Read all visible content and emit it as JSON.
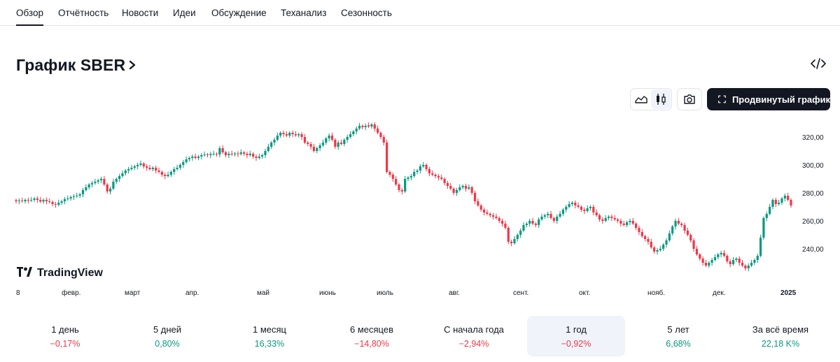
{
  "tabs": [
    {
      "label": "Обзор",
      "active": true
    },
    {
      "label": "Отчётность"
    },
    {
      "label": "Новости"
    },
    {
      "label": "Идеи"
    },
    {
      "label": "Обсуждение"
    },
    {
      "label": "Теханализ"
    },
    {
      "label": "Сезонность"
    }
  ],
  "header": {
    "title": "График SBER",
    "title_icon": "chevron-right-icon",
    "embed_icon": "code-icon"
  },
  "toolbar": {
    "line_icon": "line-chart-icon",
    "candles_icon": "candlestick-icon",
    "candles_active": true,
    "camera_icon": "camera-icon",
    "advanced_icon": "fullscreen-icon",
    "advanced_label": "Продвинутый график"
  },
  "colors": {
    "up": "#089981",
    "down": "#f23645",
    "text": "#131722",
    "axis_text": "#131722",
    "tab_underline": "#131722",
    "selected_bg": "#f0f3fa"
  },
  "chart_data": {
    "type": "candlestick",
    "symbol": "SBER",
    "watermark": "TradingView",
    "yticks": [
      "320,00",
      "300,00",
      "280,00",
      "260,00",
      "240,00"
    ],
    "ytick_values": [
      320,
      300,
      280,
      260,
      240
    ],
    "ylim": [
      218,
      338
    ],
    "x_labels": [
      "8",
      "февр.",
      "март",
      "апр.",
      "май",
      "июнь",
      "июль",
      "авг.",
      "сент.",
      "окт.",
      "нояб.",
      "дек.",
      "2025"
    ],
    "x_bold": "2025",
    "closes": [
      274,
      274.5,
      274,
      275,
      274.5,
      275,
      276,
      275,
      273.8,
      275,
      274,
      273.5,
      272,
      271.5,
      273,
      274,
      275.5,
      276,
      277,
      277.5,
      278,
      279,
      282,
      284,
      286,
      287,
      288,
      289,
      290,
      286,
      281,
      283,
      288,
      290,
      292,
      294,
      296,
      297,
      298,
      299,
      300,
      301,
      299,
      298,
      297,
      298,
      296,
      295,
      293,
      292,
      293,
      295,
      297,
      298,
      300,
      302,
      304,
      305,
      306,
      305,
      306,
      307,
      307.5,
      307,
      307.8,
      308,
      307.5,
      312,
      309,
      307,
      308,
      307.6,
      308.2,
      307.8,
      309,
      308,
      307,
      308,
      306,
      305,
      306,
      307,
      310,
      313,
      316,
      318,
      321,
      323,
      322,
      321,
      323,
      322,
      321.2,
      322,
      320,
      316,
      315,
      313,
      310,
      312,
      314,
      316,
      319,
      321,
      318,
      313,
      316,
      315,
      318,
      320,
      322,
      324,
      326,
      328,
      327,
      328,
      327.5,
      329,
      326,
      323,
      320,
      316,
      295,
      293,
      290,
      286,
      282,
      281,
      290,
      291,
      292,
      295,
      296,
      299,
      300,
      297,
      294,
      293,
      292,
      291,
      290,
      287,
      285,
      283,
      280,
      282,
      284,
      285,
      283,
      284,
      280,
      274,
      271,
      268,
      266,
      265,
      264,
      263,
      262,
      260,
      258,
      255,
      245,
      244,
      247,
      250,
      253,
      257,
      258,
      260,
      258,
      257,
      261,
      263,
      264,
      265,
      262,
      260,
      263,
      265,
      268,
      270,
      272,
      273,
      271,
      270,
      268,
      267,
      269,
      270,
      266,
      264,
      261,
      260,
      262,
      263,
      262,
      261,
      260,
      258,
      257,
      259,
      260,
      258,
      255,
      252,
      249,
      247,
      245,
      241,
      238,
      239,
      240,
      243,
      246,
      251,
      256,
      260,
      258,
      257,
      253,
      250,
      246,
      240,
      236,
      233,
      230,
      228,
      230,
      232,
      234,
      236,
      237,
      235,
      231,
      229,
      232,
      233,
      230,
      228,
      226,
      228,
      230,
      232,
      235,
      248,
      262,
      265,
      270,
      275,
      272,
      273,
      276,
      278,
      275,
      271
    ],
    "gap_after_index": 115
  },
  "periods": [
    {
      "label": "1 день",
      "value": "−0,17%",
      "positive": false
    },
    {
      "label": "5 дней",
      "value": "0,80%",
      "positive": true
    },
    {
      "label": "1 месяц",
      "value": "16,33%",
      "positive": true
    },
    {
      "label": "6 месяцев",
      "value": "−14,80%",
      "positive": false
    },
    {
      "label": "С начала года",
      "value": "−2,94%",
      "positive": false
    },
    {
      "label": "1 год",
      "value": "−0,92%",
      "positive": false,
      "selected": true
    },
    {
      "label": "5 лет",
      "value": "6,68%",
      "positive": true
    },
    {
      "label": "За всё время",
      "value": "22,18 K%",
      "positive": true
    }
  ]
}
